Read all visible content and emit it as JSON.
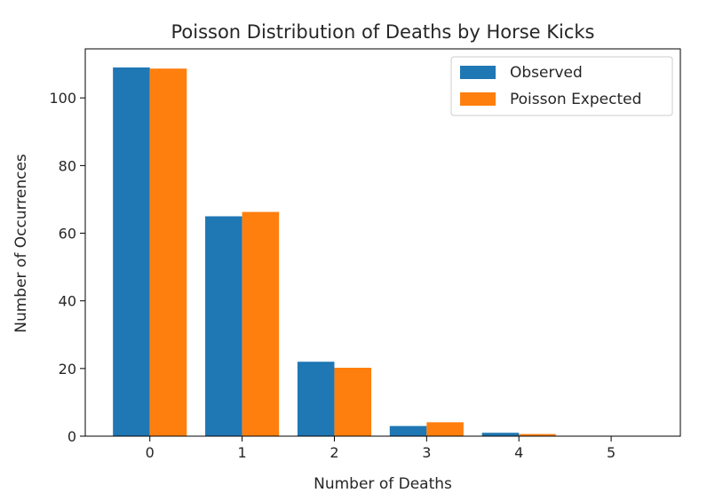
{
  "chart_data": {
    "type": "bar",
    "title": "Poisson Distribution of Deaths by Horse Kicks",
    "xlabel": "Number of Deaths",
    "ylabel": "Number of Occurrences",
    "categories": [
      "0",
      "1",
      "2",
      "3",
      "4",
      "5"
    ],
    "series": [
      {
        "name": "Observed",
        "color": "#1f77b4",
        "values": [
          109,
          65,
          22,
          3,
          1,
          0
        ]
      },
      {
        "name": "Poisson Expected",
        "color": "#ff7f0e",
        "values": [
          108.67,
          66.29,
          20.22,
          4.11,
          0.63,
          0.08
        ]
      }
    ],
    "xlim": [
      -0.7,
      5.75
    ],
    "ylim": [
      0,
      114.5
    ],
    "yticks": [
      0,
      20,
      40,
      60,
      80,
      100
    ],
    "grid": false,
    "legend": "top-right"
  }
}
